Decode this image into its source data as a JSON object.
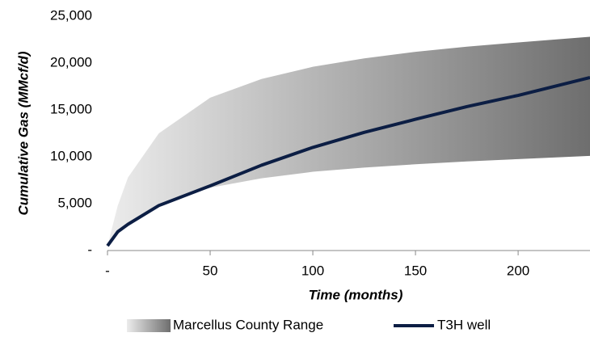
{
  "chart_data": {
    "type": "band-line",
    "xlabel": "Time (months)",
    "ylabel": "Cumulative Gas (MMcf/d)",
    "x": [
      0,
      5,
      10,
      25,
      50,
      75,
      100,
      125,
      150,
      175,
      200,
      235
    ],
    "series": [
      {
        "name": "Marcellus County Range",
        "colors": [
          "#ececec",
          "#6e6e6e"
        ],
        "low": [
          500,
          1800,
          2700,
          4800,
          6700,
          7700,
          8400,
          8850,
          9200,
          9500,
          9750,
          10100
        ],
        "high": [
          500,
          4800,
          7800,
          12500,
          16300,
          18300,
          19600,
          20500,
          21200,
          21750,
          22200,
          22800
        ]
      },
      {
        "name": "T3H well",
        "color": "#0c1e44",
        "values": [
          500,
          2000,
          2800,
          4800,
          6900,
          9100,
          11000,
          12600,
          14000,
          15350,
          16550,
          18450
        ]
      }
    ],
    "xlim": [
      0,
      235
    ],
    "ylim": [
      0,
      25000
    ],
    "xticks": [
      {
        "value": 0,
        "label": "-"
      },
      50,
      100,
      150,
      200
    ],
    "yticks": [
      {
        "value": 0,
        "label": "-"
      },
      {
        "value": 5000,
        "label": "5,000"
      },
      {
        "value": 10000,
        "label": "10,000"
      },
      {
        "value": 15000,
        "label": "15,000"
      },
      {
        "value": 20000,
        "label": "20,000"
      },
      {
        "value": 25000,
        "label": "25,000"
      }
    ]
  }
}
